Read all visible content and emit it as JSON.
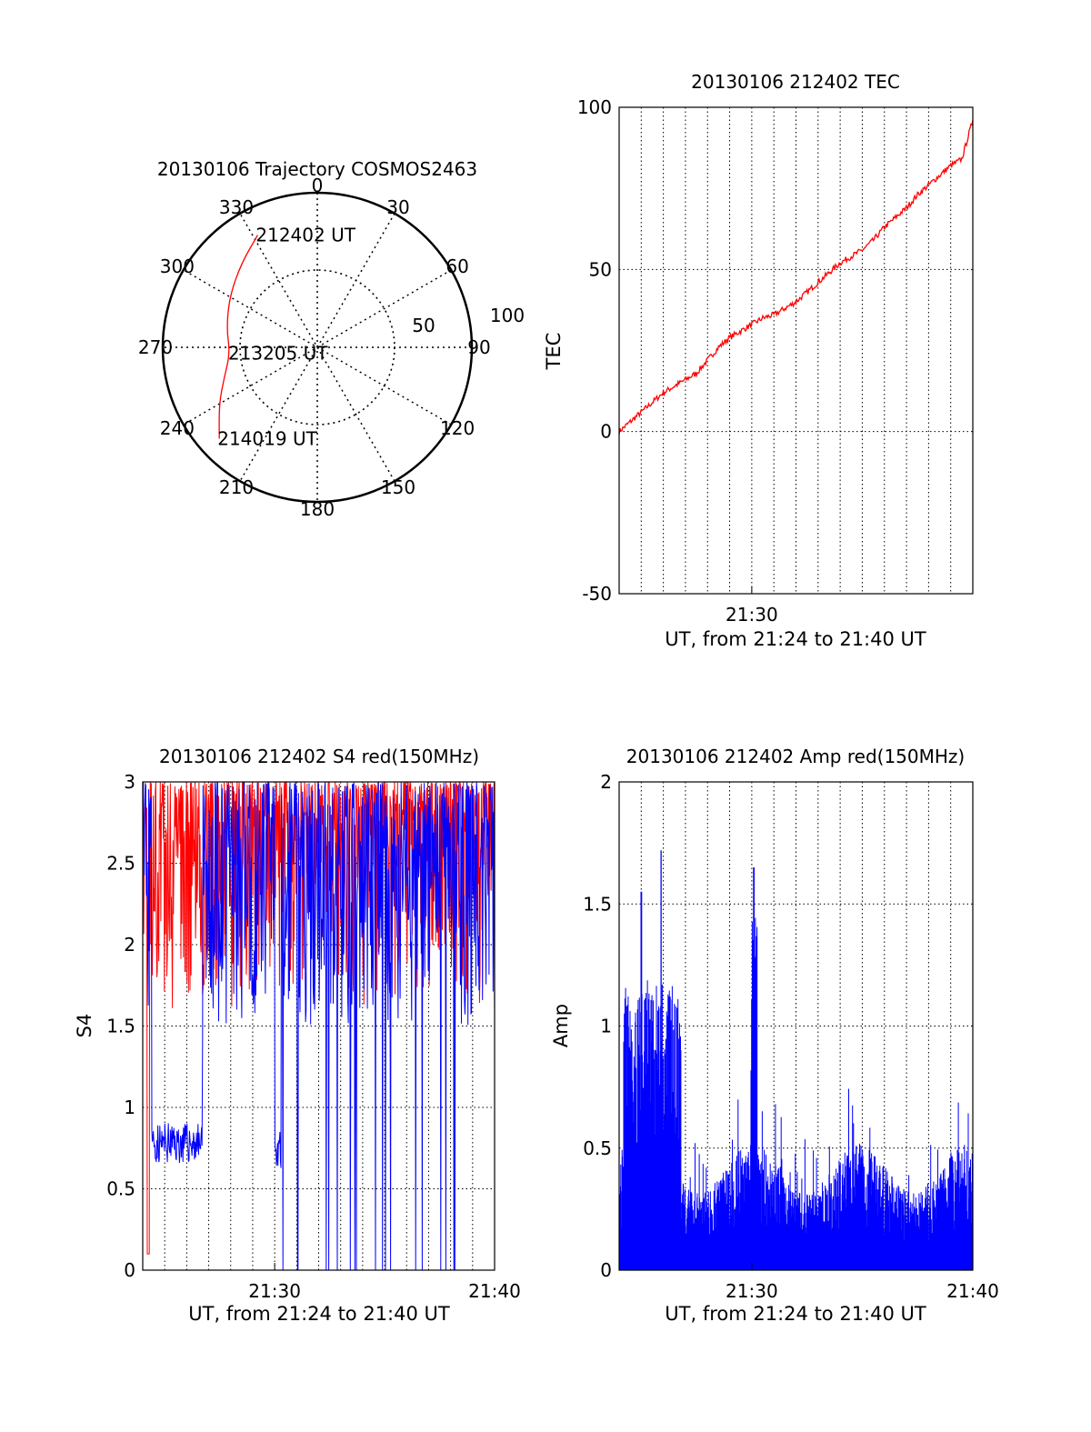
{
  "chart_data": [
    {
      "type": "polar",
      "title": "20130106 Trajectory COSMOS2463",
      "azimuth_labels": [
        "0",
        "30",
        "60",
        "90",
        "120",
        "150",
        "180",
        "210",
        "240",
        "270",
        "300",
        "330"
      ],
      "radial_ticks": [
        "50",
        "100"
      ],
      "trajectory": [
        {
          "azimuth": 332,
          "elevation": 16
        },
        {
          "azimuth": 318,
          "elevation": 24
        },
        {
          "azimuth": 300,
          "elevation": 31
        },
        {
          "azimuth": 282,
          "elevation": 36
        },
        {
          "azimuth": 266,
          "elevation": 39
        },
        {
          "azimuth": 252,
          "elevation": 33
        },
        {
          "azimuth": 240,
          "elevation": 24
        },
        {
          "azimuth": 227,
          "elevation": 12
        }
      ],
      "time_labels": [
        {
          "text": "212402 UT",
          "azimuth": 332,
          "elevation": 16
        },
        {
          "text": "213205 UT",
          "azimuth": 266,
          "elevation": 39
        },
        {
          "text": "214019 UT",
          "azimuth": 227,
          "elevation": 12
        }
      ],
      "line_color": "#ff0000"
    },
    {
      "type": "line",
      "title": "20130106 212402 TEC",
      "ylabel": "TEC",
      "xlabel": "UT, from 21:24 to 21:40 UT",
      "ylim": [
        -50,
        100
      ],
      "yticks": [
        "-50",
        "0",
        "50",
        "100"
      ],
      "xticks": [
        "21:30"
      ],
      "series": [
        {
          "color": "#ff0000",
          "x": [
            0,
            0.5,
            1,
            1.5,
            2,
            2.5,
            3,
            3.5,
            4,
            4.5,
            5,
            5.5,
            6,
            6.5,
            7,
            7.5,
            8,
            8.5,
            9,
            9.5,
            10,
            10.5,
            11,
            11.5,
            12,
            12.5,
            13,
            13.5,
            14,
            14.5,
            15,
            15.5,
            16
          ],
          "y": [
            0,
            3,
            6,
            9,
            12,
            14,
            16,
            18,
            22,
            26,
            29,
            31,
            33,
            35,
            36,
            38,
            40,
            43,
            46,
            49,
            52,
            54,
            56,
            59,
            63,
            66,
            69,
            73,
            76,
            79,
            82,
            84,
            96
          ]
        }
      ]
    },
    {
      "type": "line",
      "title": "20130106 212402 S4 red(150MHz)",
      "ylabel": "S4",
      "xlabel": "UT, from 21:24 to 21:40 UT",
      "ylim": [
        0,
        3
      ],
      "yticks": [
        "0",
        "0.5",
        "1",
        "1.5",
        "2",
        "2.5",
        "3"
      ],
      "xticks": [
        "21:30",
        "21:40"
      ],
      "series": [
        {
          "color": "#ff0000",
          "style": "dense noise, mostly 1.8 to 3.0, 21:24-21:40"
        },
        {
          "color": "#0000ff",
          "style": "dense noise 1.3 to 3.0 with band near 0.8 at 21:25-21:27 and drops to 0 between 21:30 and 21:38"
        }
      ]
    },
    {
      "type": "bar",
      "title": "20130106 212402 Amp red(150MHz)",
      "ylabel": "Amp",
      "xlabel": "UT, from 21:24 to 21:40 UT",
      "ylim": [
        0,
        2
      ],
      "yticks": [
        "0",
        "0.5",
        "1",
        "1.5",
        "2"
      ],
      "xticks": [
        "21:30",
        "21:40"
      ],
      "series": [
        {
          "color": "#0000ff",
          "peaks": [
            {
              "x": 1.0,
              "y": 1.55
            },
            {
              "x": 1.9,
              "y": 1.72
            },
            {
              "x": 6.1,
              "y": 1.65
            }
          ]
        }
      ]
    }
  ]
}
